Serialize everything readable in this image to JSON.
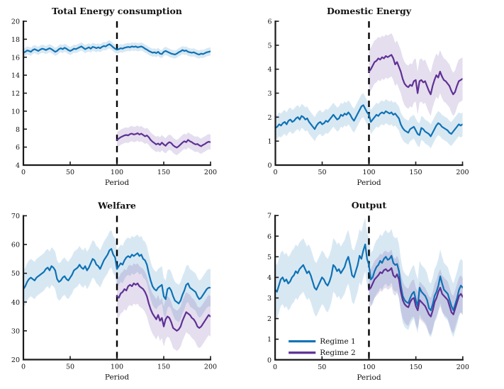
{
  "figure": {
    "background": "#ffffff",
    "n_charts": 4
  },
  "colors": {
    "regime1": "#0E72B5",
    "regime2": "#5E3195",
    "band_opacity": 0.16,
    "axis": "#1a1a1a",
    "dash_line": "#000000",
    "text": "#111111"
  },
  "legend": {
    "entries": [
      {
        "label": "Regime 1",
        "color_key": "regime1"
      },
      {
        "label": "Regime 2",
        "color_key": "regime2"
      }
    ]
  },
  "chart_data": [
    {
      "type": "line",
      "title": "Total Energy consumption",
      "xlabel": "Period",
      "xlim": [
        0,
        200
      ],
      "xticks": [
        0,
        50,
        100,
        150,
        200
      ],
      "ylim": [
        4,
        20
      ],
      "yticks": [
        4,
        6,
        8,
        10,
        12,
        14,
        16,
        18,
        20
      ],
      "vline_x": 100,
      "show_legend": false,
      "series": [
        {
          "name": "Regime 1",
          "color_key": "regime1",
          "x_start": 0,
          "x_step": 2,
          "band_halfwidth": 0.45,
          "values": [
            16.5,
            16.6,
            16.75,
            16.7,
            16.6,
            16.8,
            16.9,
            16.8,
            16.7,
            16.85,
            16.95,
            16.9,
            16.8,
            16.9,
            17.0,
            16.9,
            16.75,
            16.6,
            16.7,
            16.9,
            17.0,
            16.9,
            17.05,
            16.95,
            16.8,
            16.7,
            16.8,
            16.95,
            16.9,
            17.0,
            17.1,
            17.2,
            17.05,
            16.9,
            17.0,
            17.1,
            16.95,
            17.15,
            17.1,
            17.0,
            17.1,
            17.0,
            17.15,
            17.25,
            17.2,
            17.35,
            17.45,
            17.3,
            17.1,
            16.95,
            16.85,
            16.9,
            17.0,
            16.95,
            17.05,
            17.1,
            17.15,
            17.1,
            17.2,
            17.15,
            17.2,
            17.1,
            17.15,
            17.2,
            17.1,
            16.95,
            16.85,
            16.7,
            16.6,
            16.5,
            16.55,
            16.45,
            16.6,
            16.4,
            16.35,
            16.6,
            16.7,
            16.6,
            16.5,
            16.4,
            16.35,
            16.3,
            16.4,
            16.55,
            16.65,
            16.8,
            16.7,
            16.75,
            16.6,
            16.55,
            16.5,
            16.55,
            16.45,
            16.35,
            16.3,
            16.4,
            16.35,
            16.45,
            16.55,
            16.6,
            16.65
          ]
        },
        {
          "name": "Regime 2",
          "color_key": "regime2",
          "x_start": 100,
          "x_step": 2,
          "band_halfwidth": 0.85,
          "values": [
            6.8,
            6.95,
            7.1,
            7.2,
            7.3,
            7.35,
            7.3,
            7.45,
            7.5,
            7.4,
            7.45,
            7.55,
            7.4,
            7.5,
            7.35,
            7.2,
            7.3,
            7.1,
            6.8,
            6.6,
            6.45,
            6.3,
            6.4,
            6.25,
            6.5,
            6.3,
            6.15,
            6.4,
            6.55,
            6.45,
            6.2,
            6.05,
            5.95,
            6.1,
            6.3,
            6.5,
            6.65,
            6.55,
            6.8,
            6.65,
            6.55,
            6.4,
            6.3,
            6.35,
            6.2,
            6.1,
            6.25,
            6.35,
            6.5,
            6.6,
            6.55
          ]
        }
      ]
    },
    {
      "type": "line",
      "title": "Domestic Energy",
      "xlabel": "Period",
      "xlim": [
        0,
        200
      ],
      "xticks": [
        0,
        50,
        100,
        150,
        200
      ],
      "ylim": [
        0,
        6
      ],
      "yticks": [
        0,
        1,
        2,
        3,
        4,
        5,
        6
      ],
      "vline_x": 100,
      "show_legend": false,
      "series": [
        {
          "name": "Regime 1",
          "color_key": "regime1",
          "x_start": 0,
          "x_step": 2,
          "band_halfwidth": 0.5,
          "values": [
            1.55,
            1.6,
            1.7,
            1.65,
            1.75,
            1.8,
            1.7,
            1.85,
            1.9,
            1.8,
            1.85,
            1.95,
            2.0,
            1.9,
            2.05,
            2.0,
            1.9,
            1.95,
            1.8,
            1.7,
            1.6,
            1.5,
            1.65,
            1.75,
            1.8,
            1.7,
            1.75,
            1.85,
            1.8,
            1.9,
            2.0,
            2.1,
            2.0,
            1.9,
            1.95,
            2.1,
            2.05,
            2.15,
            2.1,
            2.2,
            2.1,
            1.95,
            1.85,
            2.0,
            2.15,
            2.3,
            2.45,
            2.5,
            2.35,
            2.2,
            2.1,
            1.8,
            1.9,
            2.0,
            2.1,
            2.05,
            2.15,
            2.2,
            2.15,
            2.25,
            2.2,
            2.15,
            2.2,
            2.1,
            2.15,
            2.05,
            1.95,
            1.7,
            1.55,
            1.45,
            1.4,
            1.35,
            1.5,
            1.55,
            1.6,
            1.45,
            1.3,
            1.25,
            1.55,
            1.5,
            1.4,
            1.35,
            1.3,
            1.2,
            1.35,
            1.5,
            1.65,
            1.75,
            1.7,
            1.6,
            1.55,
            1.5,
            1.45,
            1.35,
            1.3,
            1.4,
            1.5,
            1.6,
            1.7,
            1.65,
            1.7
          ]
        },
        {
          "name": "Regime 2",
          "color_key": "regime2",
          "x_start": 100,
          "x_step": 2,
          "band_halfwidth": 0.9,
          "values": [
            3.9,
            4.0,
            4.15,
            4.3,
            4.35,
            4.45,
            4.4,
            4.5,
            4.45,
            4.55,
            4.5,
            4.55,
            4.6,
            4.45,
            4.2,
            4.3,
            4.1,
            3.9,
            3.6,
            3.4,
            3.3,
            3.25,
            3.35,
            3.3,
            3.5,
            3.55,
            3.0,
            3.5,
            3.55,
            3.45,
            3.5,
            3.3,
            3.1,
            2.95,
            3.3,
            3.55,
            3.75,
            3.65,
            3.9,
            3.7,
            3.55,
            3.5,
            3.4,
            3.3,
            3.1,
            2.95,
            3.05,
            3.3,
            3.5,
            3.55,
            3.6
          ]
        }
      ]
    },
    {
      "type": "line",
      "title": "Welfare",
      "xlabel": "Period",
      "xlim": [
        0,
        200
      ],
      "xticks": [
        0,
        50,
        100,
        150,
        200
      ],
      "ylim": [
        20,
        70
      ],
      "yticks": [
        20,
        30,
        40,
        50,
        60,
        70
      ],
      "vline_x": 100,
      "show_legend": false,
      "series": [
        {
          "name": "Regime 1",
          "color_key": "regime1",
          "x_start": 0,
          "x_step": 2,
          "band_halfwidth": 6.5,
          "values": [
            44.5,
            45.5,
            47.0,
            48.0,
            48.5,
            48.0,
            47.5,
            48.5,
            49.0,
            49.5,
            50.0,
            50.5,
            51.5,
            52.0,
            51.0,
            52.5,
            52.0,
            51.0,
            48.0,
            47.0,
            47.5,
            48.5,
            49.0,
            48.0,
            47.5,
            48.5,
            49.5,
            51.0,
            51.5,
            52.0,
            53.0,
            52.0,
            51.5,
            52.5,
            51.0,
            52.0,
            53.5,
            55.0,
            54.5,
            53.0,
            52.5,
            51.5,
            53.0,
            54.5,
            55.5,
            56.5,
            58.0,
            58.5,
            56.5,
            55.5,
            51.5,
            52.5,
            53.5,
            53.0,
            54.5,
            55.5,
            56.0,
            55.5,
            56.5,
            56.0,
            56.5,
            57.0,
            56.0,
            56.5,
            55.0,
            54.5,
            53.0,
            50.0,
            47.5,
            45.5,
            44.5,
            44.0,
            45.0,
            45.5,
            46.0,
            42.0,
            41.0,
            44.5,
            45.0,
            44.0,
            42.0,
            40.5,
            40.0,
            39.5,
            40.5,
            42.5,
            44.0,
            46.0,
            46.5,
            45.0,
            44.5,
            44.0,
            43.5,
            42.0,
            41.0,
            41.5,
            42.5,
            43.5,
            44.5,
            45.0,
            45.0
          ]
        },
        {
          "name": "Regime 2",
          "color_key": "regime2",
          "x_start": 100,
          "x_step": 2,
          "band_halfwidth": 7.0,
          "values": [
            42.0,
            41.5,
            43.0,
            43.5,
            44.5,
            44.0,
            45.5,
            46.0,
            45.5,
            46.5,
            46.0,
            46.5,
            45.5,
            45.0,
            44.5,
            43.5,
            42.0,
            39.5,
            37.5,
            36.0,
            35.0,
            34.0,
            35.5,
            33.5,
            34.5,
            31.5,
            34.0,
            35.0,
            34.5,
            33.0,
            31.0,
            30.5,
            30.0,
            30.5,
            31.5,
            33.5,
            35.0,
            36.5,
            36.0,
            35.5,
            34.5,
            34.0,
            33.0,
            31.5,
            31.0,
            31.5,
            32.5,
            33.5,
            34.5,
            35.5,
            35.0
          ]
        }
      ]
    },
    {
      "type": "line",
      "title": "Output",
      "xlabel": "Period",
      "xlim": [
        0,
        200
      ],
      "xticks": [
        0,
        50,
        100,
        150,
        200
      ],
      "ylim": [
        0,
        7
      ],
      "yticks": [
        0,
        1,
        2,
        3,
        4,
        5,
        6,
        7
      ],
      "vline_x": 100,
      "show_legend": true,
      "series": [
        {
          "name": "Regime 1",
          "color_key": "regime1",
          "x_start": 0,
          "x_step": 2,
          "band_halfwidth": 1.3,
          "values": [
            3.4,
            3.3,
            3.6,
            3.9,
            4.0,
            3.8,
            3.9,
            3.7,
            3.8,
            4.0,
            4.1,
            4.3,
            4.2,
            4.4,
            4.5,
            4.6,
            4.4,
            4.2,
            4.3,
            4.1,
            3.8,
            3.5,
            3.4,
            3.6,
            3.8,
            4.0,
            3.9,
            3.7,
            3.6,
            3.8,
            4.1,
            4.6,
            4.5,
            4.3,
            4.4,
            4.2,
            4.35,
            4.5,
            4.8,
            5.0,
            4.6,
            4.1,
            4.0,
            4.3,
            4.6,
            5.05,
            4.9,
            5.3,
            5.6,
            4.9,
            4.6,
            3.9,
            4.0,
            4.3,
            4.5,
            4.6,
            4.8,
            4.7,
            4.9,
            5.0,
            4.85,
            4.9,
            5.05,
            4.7,
            4.6,
            4.65,
            4.3,
            3.6,
            3.1,
            2.9,
            2.8,
            2.75,
            3.0,
            3.2,
            3.3,
            2.9,
            2.6,
            3.5,
            3.3,
            3.2,
            3.1,
            2.9,
            2.5,
            2.4,
            2.7,
            3.1,
            3.3,
            3.6,
            4.05,
            3.7,
            3.4,
            3.3,
            3.2,
            2.9,
            2.6,
            2.4,
            2.7,
            3.0,
            3.4,
            3.6,
            3.5
          ]
        },
        {
          "name": "Regime 2",
          "color_key": "regime2",
          "x_start": 100,
          "x_step": 2,
          "band_halfwidth": 0.9,
          "values": [
            3.4,
            3.5,
            3.7,
            3.9,
            4.0,
            4.1,
            4.25,
            4.2,
            4.35,
            4.4,
            4.3,
            4.35,
            4.45,
            4.1,
            4.0,
            4.15,
            3.9,
            3.3,
            2.9,
            2.7,
            2.6,
            2.55,
            2.8,
            2.95,
            3.0,
            2.6,
            2.4,
            2.9,
            2.8,
            2.7,
            2.6,
            2.4,
            2.2,
            2.1,
            2.4,
            2.8,
            3.0,
            3.3,
            3.5,
            3.2,
            3.1,
            3.0,
            2.9,
            2.6,
            2.3,
            2.2,
            2.5,
            2.8,
            3.1,
            3.2,
            3.05
          ]
        }
      ]
    }
  ]
}
